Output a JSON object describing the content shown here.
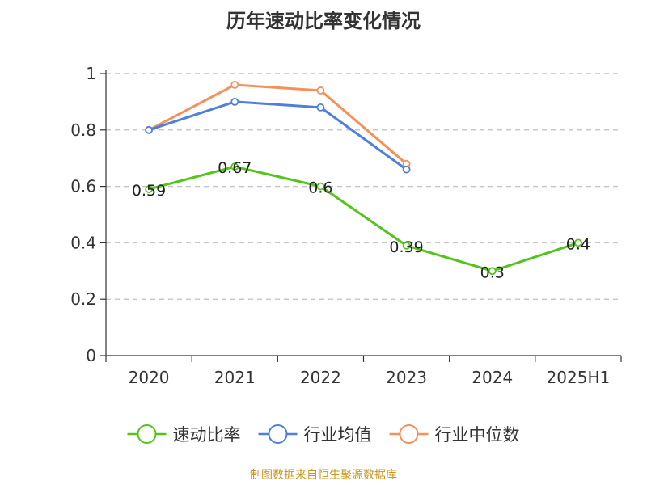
{
  "chart_data": {
    "type": "line",
    "title": "历年速动比率变化情况",
    "categories": [
      "2020",
      "2021",
      "2022",
      "2023",
      "2024",
      "2025H1"
    ],
    "y_ticks": [
      "0",
      "0.2",
      "0.4",
      "0.6",
      "0.8",
      "1"
    ],
    "ylim": [
      0,
      1
    ],
    "grid": true,
    "legend_position": "bottom",
    "series": [
      {
        "name": "速动比率",
        "color": "#52c41a",
        "values": [
          0.59,
          0.67,
          0.6,
          0.39,
          0.3,
          0.4
        ],
        "labels": [
          "0.59",
          "0.67",
          "0.6",
          "0.39",
          "0.3",
          "0.4"
        ],
        "show_labels": true
      },
      {
        "name": "行业均值",
        "color": "#4f7fdc",
        "values": [
          0.8,
          0.9,
          0.88,
          0.66,
          null,
          null
        ],
        "show_labels": false
      },
      {
        "name": "行业中位数",
        "color": "#f6905a",
        "values": [
          0.8,
          0.96,
          0.94,
          0.68,
          null,
          null
        ],
        "show_labels": false
      }
    ]
  },
  "source_note": {
    "text": "制图数据来自恒生聚源数据库",
    "color": "#c8961e"
  }
}
